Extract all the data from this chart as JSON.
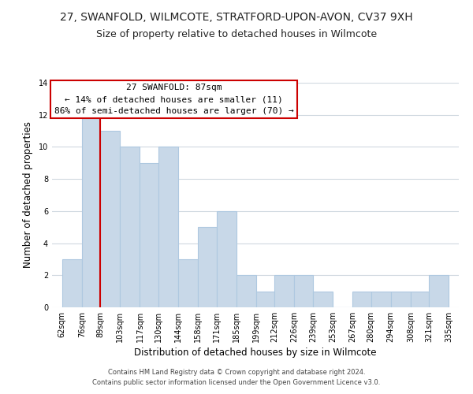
{
  "title1": "27, SWANFOLD, WILMCOTE, STRATFORD-UPON-AVON, CV37 9XH",
  "title2": "Size of property relative to detached houses in Wilmcote",
  "xlabel": "Distribution of detached houses by size in Wilmcote",
  "ylabel": "Number of detached properties",
  "bar_left_edges": [
    62,
    76,
    89,
    103,
    117,
    130,
    144,
    158,
    171,
    185,
    199,
    212,
    226,
    239,
    253,
    267,
    280,
    294,
    308,
    321
  ],
  "bar_heights": [
    3,
    12,
    11,
    10,
    9,
    10,
    3,
    5,
    6,
    2,
    1,
    2,
    2,
    1,
    0,
    1,
    1,
    1,
    1,
    2
  ],
  "bar_widths": [
    14,
    13,
    14,
    14,
    13,
    14,
    14,
    13,
    14,
    14,
    13,
    14,
    13,
    14,
    14,
    13,
    14,
    14,
    13,
    14
  ],
  "bar_color": "#c8d8e8",
  "bar_edgecolor": "#aec8e0",
  "grid_color": "#d0d8e0",
  "vline_x": 89,
  "vline_color": "#cc0000",
  "xtick_labels": [
    "62sqm",
    "76sqm",
    "89sqm",
    "103sqm",
    "117sqm",
    "130sqm",
    "144sqm",
    "158sqm",
    "171sqm",
    "185sqm",
    "199sqm",
    "212sqm",
    "226sqm",
    "239sqm",
    "253sqm",
    "267sqm",
    "280sqm",
    "294sqm",
    "308sqm",
    "321sqm",
    "335sqm"
  ],
  "xtick_positions": [
    62,
    76,
    89,
    103,
    117,
    130,
    144,
    158,
    171,
    185,
    199,
    212,
    226,
    239,
    253,
    267,
    280,
    294,
    308,
    321,
    335
  ],
  "ylim": [
    0,
    14
  ],
  "xlim": [
    55,
    342
  ],
  "annotation_text": "27 SWANFOLD: 87sqm\n← 14% of detached houses are smaller (11)\n86% of semi-detached houses are larger (70) →",
  "annotation_box_edgecolor": "#cc0000",
  "annotation_box_facecolor": "#ffffff",
  "footer_text": "Contains HM Land Registry data © Crown copyright and database right 2024.\nContains public sector information licensed under the Open Government Licence v3.0.",
  "background_color": "#ffffff",
  "title_fontsize": 10,
  "subtitle_fontsize": 9,
  "axis_label_fontsize": 8.5,
  "tick_fontsize": 7,
  "annotation_fontsize": 8,
  "footer_fontsize": 6
}
